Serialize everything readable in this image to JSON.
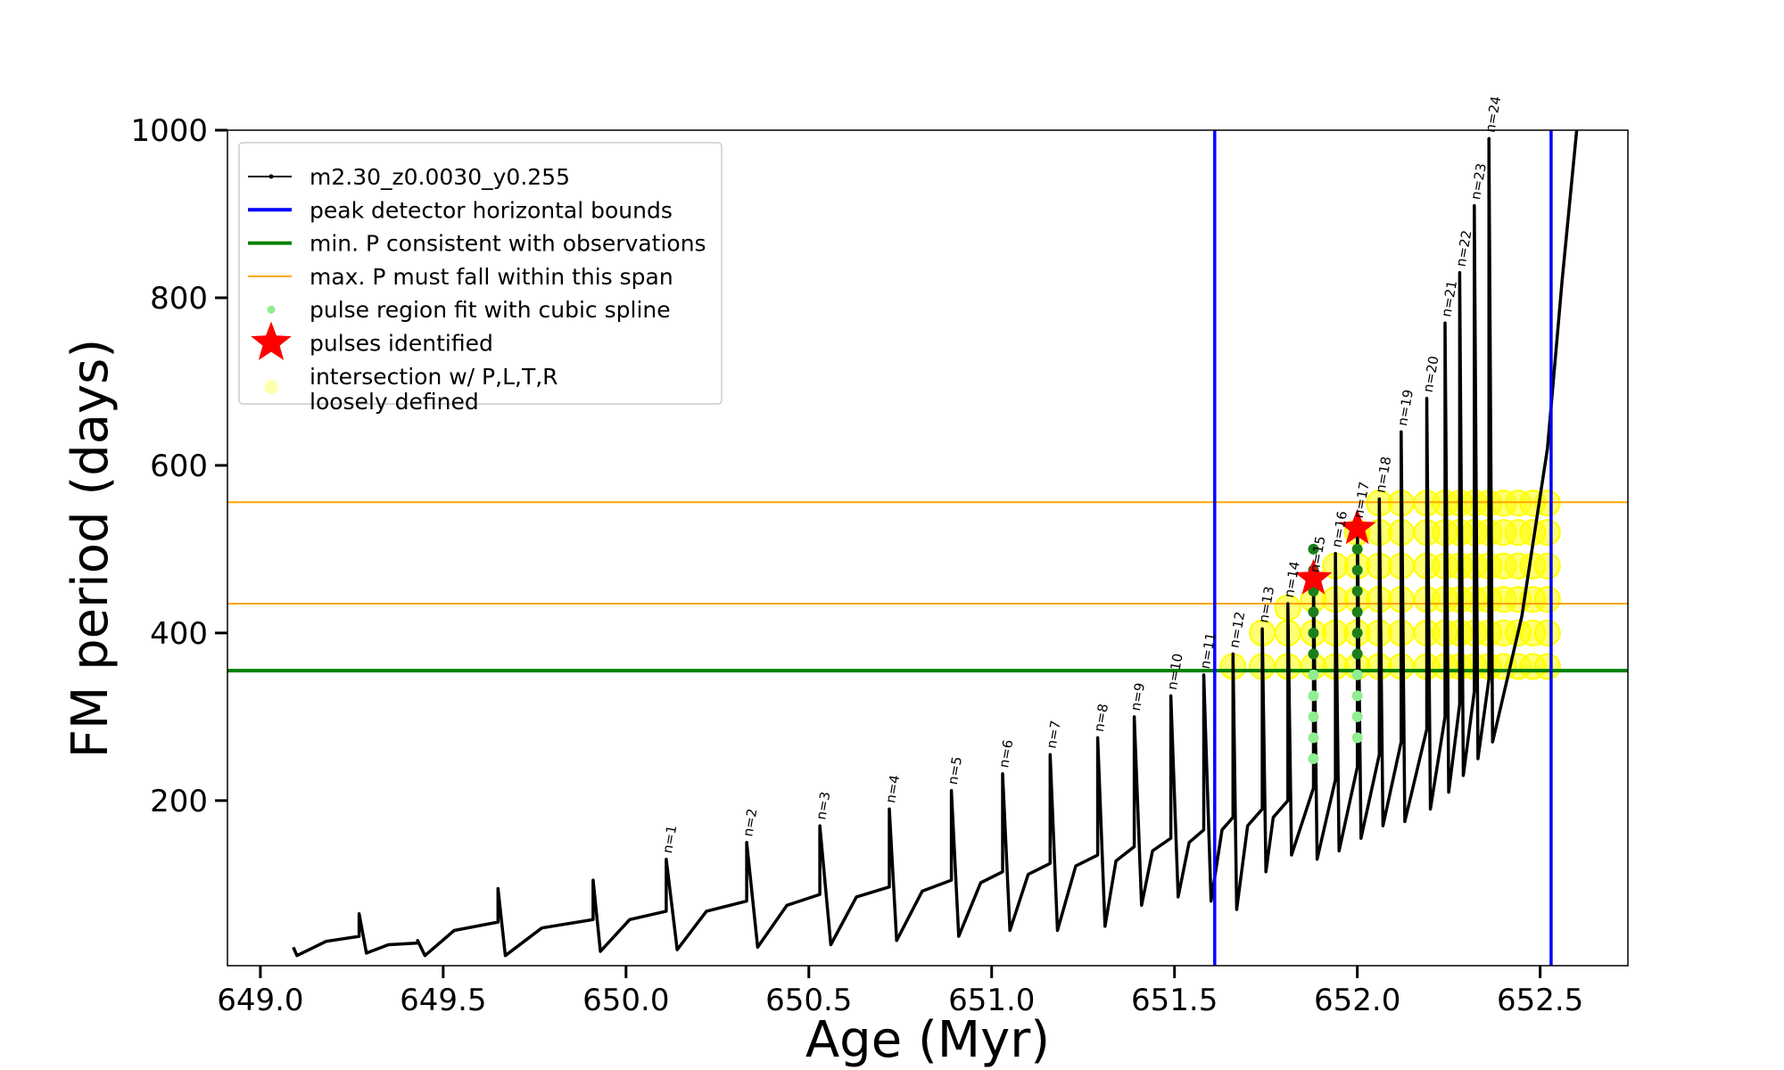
{
  "chart_data": {
    "type": "line",
    "xlabel": "Age (Myr)",
    "ylabel": "FM period (days)",
    "xlim": [
      648.91,
      652.74
    ],
    "ylim": [
      3,
      1000
    ],
    "xticks": [
      {
        "value": 649.0,
        "label": "649.0"
      },
      {
        "value": 649.5,
        "label": "649.5"
      },
      {
        "value": 650.0,
        "label": "650.0"
      },
      {
        "value": 650.5,
        "label": "650.5"
      },
      {
        "value": 651.0,
        "label": "651.0"
      },
      {
        "value": 651.5,
        "label": "651.5"
      },
      {
        "value": 652.0,
        "label": "652.0"
      },
      {
        "value": 652.5,
        "label": "652.5"
      }
    ],
    "yticks": [
      200,
      400,
      600,
      800,
      1000
    ],
    "legend": "upper left",
    "series": [
      {
        "name": "m2.30_z0.0030_y0.255",
        "kind": "line",
        "color": "#000000",
        "x": [
          649.09,
          649.1,
          649.18,
          649.27,
          649.27,
          649.29,
          649.35,
          649.43,
          649.43,
          649.45,
          649.53,
          649.65,
          649.65,
          649.67,
          649.77,
          649.91,
          649.91,
          649.93,
          650.01,
          650.11,
          650.11,
          650.14,
          650.22,
          650.33,
          650.33,
          650.36,
          650.44,
          650.53,
          650.53,
          650.56,
          650.63,
          650.72,
          650.72,
          650.74,
          650.81,
          650.89,
          650.89,
          650.91,
          650.97,
          651.03,
          651.03,
          651.05,
          651.1,
          651.16,
          651.16,
          651.18,
          651.23,
          651.29,
          651.29,
          651.31,
          651.34,
          651.39,
          651.39,
          651.41,
          651.44,
          651.49,
          651.49,
          651.51,
          651.54,
          651.58,
          651.58,
          651.6,
          651.63,
          651.66,
          651.66,
          651.67,
          651.7,
          651.74,
          651.74,
          651.75,
          651.77,
          651.81,
          651.81,
          651.82,
          651.88,
          651.88,
          651.89,
          651.94,
          651.94,
          651.95,
          652.0,
          652.0,
          652.01,
          652.06,
          652.06,
          652.07,
          652.12,
          652.12,
          652.13,
          652.19,
          652.19,
          652.2,
          652.24,
          652.24,
          652.25,
          652.28,
          652.28,
          652.29,
          652.32,
          652.32,
          652.33,
          652.36,
          652.36,
          652.37,
          652.45,
          652.52,
          652.56,
          652.6
        ],
        "values": [
          25,
          15,
          32,
          38,
          65,
          18,
          28,
          30,
          33,
          15,
          45,
          55,
          95,
          15,
          48,
          58,
          105,
          20,
          58,
          68,
          130,
          22,
          68,
          80,
          150,
          25,
          75,
          88,
          170,
          28,
          85,
          97,
          190,
          33,
          92,
          105,
          212,
          38,
          102,
          115,
          232,
          45,
          112,
          125,
          255,
          45,
          122,
          135,
          275,
          50,
          128,
          145,
          300,
          75,
          140,
          155,
          325,
          85,
          150,
          165,
          350,
          80,
          165,
          180,
          375,
          70,
          170,
          190,
          405,
          115,
          180,
          200,
          435,
          135,
          215,
          465,
          130,
          225,
          495,
          140,
          240,
          530,
          155,
          255,
          560,
          170,
          270,
          640,
          175,
          285,
          680,
          190,
          300,
          770,
          210,
          315,
          830,
          230,
          330,
          910,
          250,
          345,
          990,
          270,
          420,
          620,
          820,
          1000
        ]
      },
      {
        "name": "peak detector horizontal bounds",
        "kind": "vline",
        "color": "#0000ff",
        "x": [
          651.61,
          652.53
        ]
      },
      {
        "name": "min. P consistent with observations",
        "kind": "hline",
        "color": "#008000",
        "values": [
          355
        ]
      },
      {
        "name": "max. P must fall within this span",
        "kind": "hline",
        "color": "#ffa500",
        "values": [
          435,
          556
        ]
      },
      {
        "name": "pulse region fit with cubic spline",
        "kind": "scatter",
        "color": "#90ee90",
        "x": [
          651.88,
          651.88,
          651.88,
          651.88,
          651.88,
          651.88,
          651.88,
          651.88,
          651.88,
          651.88,
          651.88,
          652.0,
          652.0,
          652.0,
          652.0,
          652.0,
          652.0,
          652.0,
          652.0,
          652.0,
          652.0
        ],
        "values": [
          250,
          275,
          300,
          325,
          350,
          375,
          400,
          425,
          450,
          475,
          500,
          275,
          300,
          325,
          350,
          375,
          400,
          425,
          450,
          475,
          500
        ]
      },
      {
        "name": "pulses identified",
        "kind": "star",
        "color": "#ff0000",
        "x": [
          651.88,
          652.0
        ],
        "values": [
          465,
          525
        ]
      },
      {
        "name": "intersection w/ P,L,T,R\nloosely defined",
        "kind": "blob",
        "color": "#ffff00",
        "x": [
          651.66,
          651.74,
          651.74,
          651.81,
          651.81,
          651.81,
          651.88,
          651.88,
          651.88,
          651.94,
          651.94,
          651.94,
          651.94,
          652.0,
          652.0,
          652.0,
          652.0,
          652.0,
          652.06,
          652.06,
          652.06,
          652.06,
          652.06,
          652.06,
          652.12,
          652.12,
          652.12,
          652.12,
          652.12,
          652.12,
          652.19,
          652.19,
          652.19,
          652.19,
          652.19,
          652.19,
          652.24,
          652.24,
          652.24,
          652.24,
          652.24,
          652.24,
          652.28,
          652.28,
          652.28,
          652.28,
          652.28,
          652.28,
          652.32,
          652.32,
          652.32,
          652.32,
          652.32,
          652.32,
          652.36,
          652.36,
          652.36,
          652.36,
          652.36,
          652.36,
          652.4,
          652.4,
          652.4,
          652.4,
          652.4,
          652.4,
          652.44,
          652.44,
          652.44,
          652.44,
          652.44,
          652.44,
          652.48,
          652.48,
          652.48,
          652.48,
          652.48,
          652.48,
          652.52,
          652.52,
          652.52,
          652.52,
          652.52,
          652.52
        ],
        "values": [
          360,
          360,
          400,
          360,
          400,
          430,
          360,
          400,
          440,
          360,
          400,
          440,
          480,
          360,
          400,
          440,
          480,
          520,
          360,
          400,
          440,
          480,
          520,
          555,
          360,
          400,
          440,
          480,
          520,
          555,
          360,
          400,
          440,
          480,
          520,
          555,
          360,
          400,
          440,
          480,
          520,
          555,
          360,
          400,
          440,
          480,
          520,
          555,
          360,
          400,
          440,
          480,
          520,
          555,
          360,
          400,
          440,
          480,
          520,
          555,
          360,
          400,
          440,
          480,
          520,
          555,
          360,
          400,
          440,
          480,
          520,
          555,
          360,
          400,
          440,
          480,
          520,
          555,
          360,
          400,
          440,
          480,
          520,
          555
        ]
      }
    ],
    "annotations": [
      {
        "text": "n=1",
        "x": 650.11,
        "y": 130
      },
      {
        "text": "n=2",
        "x": 650.33,
        "y": 150
      },
      {
        "text": "n=3",
        "x": 650.53,
        "y": 170
      },
      {
        "text": "n=4",
        "x": 650.72,
        "y": 190
      },
      {
        "text": "n=5",
        "x": 650.89,
        "y": 212
      },
      {
        "text": "n=6",
        "x": 651.03,
        "y": 232
      },
      {
        "text": "n=7",
        "x": 651.16,
        "y": 255
      },
      {
        "text": "n=8",
        "x": 651.29,
        "y": 275
      },
      {
        "text": "n=9",
        "x": 651.39,
        "y": 300
      },
      {
        "text": "n=10",
        "x": 651.49,
        "y": 325
      },
      {
        "text": "n=11",
        "x": 651.58,
        "y": 350
      },
      {
        "text": "n=12",
        "x": 651.66,
        "y": 375
      },
      {
        "text": "n=13",
        "x": 651.74,
        "y": 405
      },
      {
        "text": "n=14",
        "x": 651.81,
        "y": 435
      },
      {
        "text": "n=15",
        "x": 651.88,
        "y": 465
      },
      {
        "text": "n=16",
        "x": 651.94,
        "y": 495
      },
      {
        "text": "n=17",
        "x": 652.0,
        "y": 530
      },
      {
        "text": "n=18",
        "x": 652.06,
        "y": 560
      },
      {
        "text": "n=19",
        "x": 652.12,
        "y": 640
      },
      {
        "text": "n=20",
        "x": 652.19,
        "y": 680
      },
      {
        "text": "n=21",
        "x": 652.24,
        "y": 770
      },
      {
        "text": "n=22",
        "x": 652.28,
        "y": 830
      },
      {
        "text": "n=23",
        "x": 652.32,
        "y": 910
      },
      {
        "text": "n=24",
        "x": 652.36,
        "y": 990
      }
    ]
  }
}
